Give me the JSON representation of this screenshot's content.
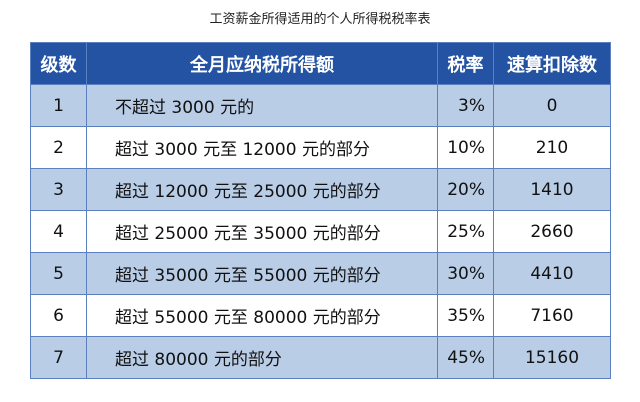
{
  "title": "工资薪金所得适用的个人所得税税率表",
  "table": {
    "header": [
      "级数",
      "全月应纳税所得额",
      "税率",
      "速算扣除数"
    ],
    "rows": [
      [
        "1",
        "不超过 3000 元的",
        "3%",
        "0"
      ],
      [
        "2",
        "超过 3000 元至 12000 元的部分",
        "10%",
        "210"
      ],
      [
        "3",
        "超过 12000 元至 25000 元的部分",
        "20%",
        "1410"
      ],
      [
        "4",
        "超过 25000 元至 35000 元的部分",
        "25%",
        "2660"
      ],
      [
        "5",
        "超过 35000 元至 55000 元的部分",
        "30%",
        "4410"
      ],
      [
        "6",
        "超过 55000 元至 80000 元的部分",
        "35%",
        "7160"
      ],
      [
        "7",
        "超过 80000 元的部分",
        "45%",
        "15160"
      ]
    ]
  }
}
